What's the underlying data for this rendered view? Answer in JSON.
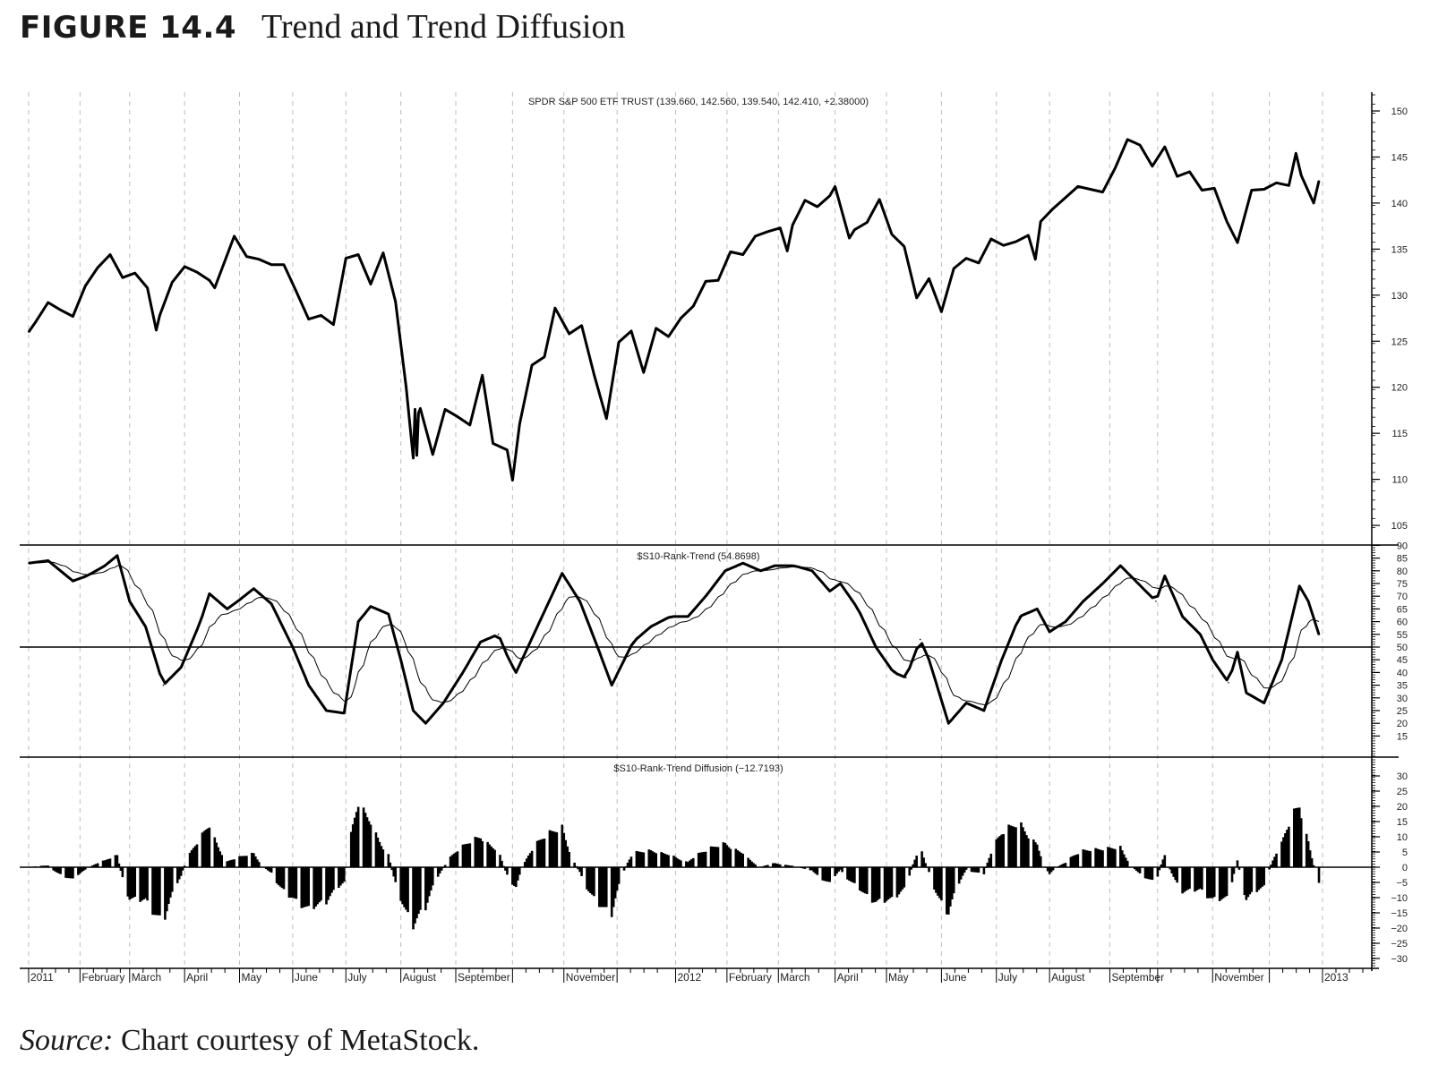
{
  "figure": {
    "number": "FIGURE 14.4",
    "title": "Trend and Trend Diffusion"
  },
  "source": {
    "label": "Source:",
    "text": "Chart courtesy of MetaStock."
  },
  "colors": {
    "line": "#000000",
    "grid": "#bdbdbd",
    "axis": "#000000"
  },
  "chart_data": [
    {
      "type": "line",
      "title": "SPDR S&P 500 ETF TRUST (139.660, 142.560, 139.540, 142.410, +2.38000)",
      "ylim": [
        104,
        152
      ],
      "yticks": [
        105,
        110,
        115,
        120,
        125,
        130,
        135,
        140,
        145,
        150
      ],
      "dates": [
        "2011-01-03",
        "2011-01-07",
        "2011-01-14",
        "2011-01-21",
        "2011-01-28",
        "2011-02-04",
        "2011-02-11",
        "2011-02-18",
        "2011-02-25",
        "2011-03-04",
        "2011-03-11",
        "2011-03-16",
        "2011-03-18",
        "2011-03-25",
        "2011-04-01",
        "2011-04-08",
        "2011-04-15",
        "2011-04-18",
        "2011-04-29",
        "2011-05-06",
        "2011-05-13",
        "2011-05-20",
        "2011-05-27",
        "2011-06-03",
        "2011-06-10",
        "2011-06-17",
        "2011-06-24",
        "2011-07-01",
        "2011-07-08",
        "2011-07-15",
        "2011-07-22",
        "2011-07-29",
        "2011-08-04",
        "2011-08-08",
        "2011-08-09",
        "2011-08-10",
        "2011-08-11",
        "2011-08-12",
        "2011-08-19",
        "2011-08-26",
        "2011-09-02",
        "2011-09-09",
        "2011-09-16",
        "2011-09-22",
        "2011-09-30",
        "2011-10-03",
        "2011-10-07",
        "2011-10-14",
        "2011-10-21",
        "2011-10-27",
        "2011-11-04",
        "2011-11-11",
        "2011-11-18",
        "2011-11-25",
        "2011-12-02",
        "2011-12-09",
        "2011-12-16",
        "2011-12-23",
        "2011-12-30",
        "2012-01-06",
        "2012-01-13",
        "2012-01-20",
        "2012-01-27",
        "2012-02-03",
        "2012-02-10",
        "2012-02-17",
        "2012-02-24",
        "2012-03-02",
        "2012-03-06",
        "2012-03-09",
        "2012-03-16",
        "2012-03-23",
        "2012-03-30",
        "2012-04-02",
        "2012-04-10",
        "2012-04-13",
        "2012-04-20",
        "2012-04-27",
        "2012-05-04",
        "2012-05-11",
        "2012-05-18",
        "2012-05-25",
        "2012-06-01",
        "2012-06-08",
        "2012-06-15",
        "2012-06-22",
        "2012-06-29",
        "2012-07-06",
        "2012-07-13",
        "2012-07-20",
        "2012-07-24",
        "2012-07-27",
        "2012-08-03",
        "2012-08-10",
        "2012-08-17",
        "2012-08-24",
        "2012-08-31",
        "2012-09-07",
        "2012-09-14",
        "2012-09-21",
        "2012-09-28",
        "2012-10-05",
        "2012-10-12",
        "2012-10-19",
        "2012-10-26",
        "2012-11-02",
        "2012-11-09",
        "2012-11-15",
        "2012-11-23",
        "2012-11-30",
        "2012-12-07",
        "2012-12-14",
        "2012-12-18",
        "2012-12-21",
        "2012-12-28",
        "2012-12-31"
      ],
      "values": [
        126.0,
        127.1,
        129.2,
        128.4,
        127.7,
        131.0,
        133.0,
        134.4,
        131.9,
        132.4,
        130.8,
        126.2,
        127.8,
        131.4,
        133.1,
        132.5,
        131.6,
        130.8,
        136.4,
        134.2,
        133.9,
        133.3,
        133.3,
        130.4,
        127.4,
        127.8,
        126.8,
        134.0,
        134.4,
        131.2,
        134.6,
        129.3,
        120.0,
        112.3,
        117.6,
        112.6,
        117.2,
        117.7,
        112.7,
        117.6,
        116.8,
        115.9,
        121.3,
        113.9,
        113.2,
        109.9,
        116.0,
        122.4,
        123.3,
        128.6,
        125.8,
        126.7,
        121.4,
        116.6,
        124.9,
        126.1,
        121.6,
        126.4,
        125.5,
        127.5,
        128.8,
        131.5,
        131.6,
        134.7,
        134.4,
        136.4,
        136.9,
        137.3,
        134.8,
        137.6,
        140.3,
        139.6,
        140.8,
        141.8,
        136.2,
        137.1,
        137.9,
        140.4,
        136.6,
        135.3,
        129.7,
        131.8,
        128.2,
        132.9,
        134.0,
        133.5,
        136.1,
        135.4,
        135.8,
        136.5,
        133.9,
        138.0,
        139.4,
        140.6,
        141.8,
        141.5,
        141.2,
        143.8,
        146.9,
        146.3,
        144.0,
        146.1,
        142.9,
        143.4,
        141.4,
        141.6,
        138.0,
        135.7,
        141.4,
        141.5,
        142.2,
        141.9,
        145.4,
        143.0,
        140.0,
        142.41
      ]
    },
    {
      "type": "line",
      "title": "$S10-Rank-Trend (54.8698)",
      "ylim": [
        12,
        90
      ],
      "yticks": [
        15,
        20,
        25,
        30,
        35,
        40,
        45,
        50,
        55,
        60,
        65,
        70,
        75,
        80,
        85,
        90
      ],
      "reference_line": 50,
      "moving_average_period": 15,
      "dates": [
        "2011-01-03",
        "2011-01-14",
        "2011-01-28",
        "2011-02-05",
        "2011-02-15",
        "2011-02-22",
        "2011-03-01",
        "2011-03-10",
        "2011-03-20",
        "2011-03-30",
        "2011-04-10",
        "2011-04-15",
        "2011-04-25",
        "2011-05-01",
        "2011-05-10",
        "2011-05-20",
        "2011-06-01",
        "2011-06-10",
        "2011-06-20",
        "2011-06-30",
        "2011-07-08",
        "2011-07-15",
        "2011-07-25",
        "2011-08-01",
        "2011-08-08",
        "2011-08-15",
        "2011-08-25",
        "2011-09-05",
        "2011-09-15",
        "2011-09-25",
        "2011-10-01",
        "2011-10-05",
        "2011-10-15",
        "2011-10-25",
        "2011-10-31",
        "2011-11-10",
        "2011-11-20",
        "2011-11-28",
        "2011-12-10",
        "2011-12-20",
        "2011-12-31",
        "2012-01-10",
        "2012-01-20",
        "2012-01-31",
        "2012-02-10",
        "2012-02-20",
        "2012-02-28",
        "2012-03-10",
        "2012-03-20",
        "2012-03-30",
        "2012-04-05",
        "2012-04-15",
        "2012-04-25",
        "2012-05-05",
        "2012-05-12",
        "2012-05-20",
        "2012-05-25",
        "2012-06-05",
        "2012-06-15",
        "2012-06-25",
        "2012-07-05",
        "2012-07-15",
        "2012-07-25",
        "2012-08-01",
        "2012-08-10",
        "2012-08-20",
        "2012-08-31",
        "2012-09-10",
        "2012-09-20",
        "2012-09-30",
        "2012-10-05",
        "2012-10-15",
        "2012-10-25",
        "2012-11-01",
        "2012-11-10",
        "2012-11-15",
        "2012-11-20",
        "2012-11-30",
        "2012-12-10",
        "2012-12-20",
        "2012-12-25",
        "2012-12-31"
      ],
      "values": [
        83,
        84,
        76,
        78,
        82,
        86,
        68,
        58,
        35,
        42,
        60,
        71,
        65,
        68,
        73,
        67,
        50,
        35,
        25,
        24,
        60,
        66,
        63,
        45,
        25,
        20,
        28,
        40,
        52,
        55,
        45,
        40,
        55,
        70,
        79,
        68,
        50,
        35,
        52,
        58,
        62,
        62,
        70,
        80,
        83,
        80,
        82,
        82,
        80,
        72,
        75,
        65,
        50,
        40,
        38,
        53,
        45,
        20,
        28,
        25,
        45,
        62,
        65,
        56,
        60,
        68,
        75,
        82,
        75,
        68,
        78,
        62,
        55,
        45,
        36,
        48,
        32,
        28,
        45,
        74,
        68,
        54.9
      ]
    },
    {
      "type": "bar",
      "title": "$S10-Rank-Trend Diffusion (−12.7193)",
      "derived_from": "rank-trend minus its moving average",
      "ylim": [
        -32,
        32
      ],
      "yticks": [
        "30",
        "25",
        "20",
        "15",
        "10",
        "5",
        "0",
        "−5",
        "−10",
        "−15",
        "−20",
        "−25",
        "−30"
      ],
      "ytick_values": [
        30,
        25,
        20,
        15,
        10,
        5,
        0,
        -5,
        -10,
        -15,
        -20,
        -25,
        -30
      ]
    }
  ],
  "x_axis": {
    "start": "2011-01-01",
    "end": "2013-01-01",
    "labels": [
      {
        "date": "2011-01-03",
        "text": "2011"
      },
      {
        "date": "2011-02-01",
        "text": "February"
      },
      {
        "date": "2011-03-01",
        "text": "March"
      },
      {
        "date": "2011-04-01",
        "text": "April"
      },
      {
        "date": "2011-05-02",
        "text": "May"
      },
      {
        "date": "2011-06-01",
        "text": "June"
      },
      {
        "date": "2011-07-01",
        "text": "July"
      },
      {
        "date": "2011-08-01",
        "text": "August"
      },
      {
        "date": "2011-09-01",
        "text": "September"
      },
      {
        "date": "2011-10-03",
        "text": ""
      },
      {
        "date": "2011-11-01",
        "text": "November"
      },
      {
        "date": "2011-12-01",
        "text": ""
      },
      {
        "date": "2012-01-03",
        "text": "2012"
      },
      {
        "date": "2012-02-01",
        "text": "February"
      },
      {
        "date": "2012-03-01",
        "text": "March"
      },
      {
        "date": "2012-04-02",
        "text": "April"
      },
      {
        "date": "2012-05-01",
        "text": "May"
      },
      {
        "date": "2012-06-01",
        "text": "June"
      },
      {
        "date": "2012-07-02",
        "text": "July"
      },
      {
        "date": "2012-08-01",
        "text": "August"
      },
      {
        "date": "2012-09-04",
        "text": "September"
      },
      {
        "date": "2012-10-01",
        "text": ""
      },
      {
        "date": "2012-11-01",
        "text": "November"
      },
      {
        "date": "2012-12-03",
        "text": ""
      },
      {
        "date": "2013-01-02",
        "text": "2013"
      }
    ]
  }
}
